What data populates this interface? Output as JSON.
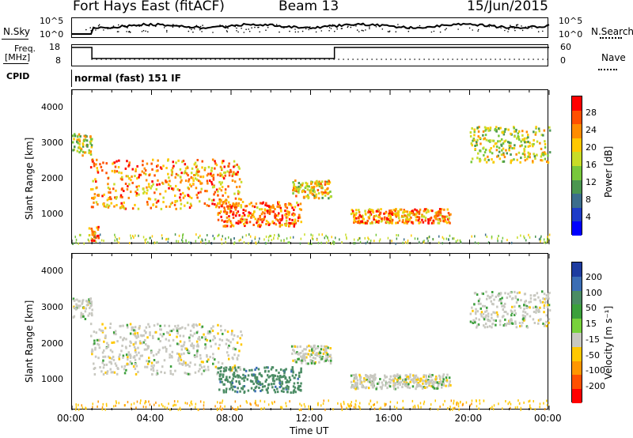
{
  "header": {
    "station": "Fort Hays East (fitACF)",
    "beam": "Beam 13",
    "date": "15/Jun/2015"
  },
  "top_panels": {
    "nsky_label": "N.Sky",
    "nsky_ticks": [
      "10^5",
      "10^0"
    ],
    "nsearch_label": "N.Search",
    "nsearch_ticks": [
      "10^5",
      "10^0"
    ],
    "freq_label_1": "Freq.",
    "freq_label_2": "[MHz]",
    "freq_ticks": [
      "18",
      "8"
    ],
    "nave_label": "Nave",
    "nave_ticks": [
      "60",
      "0"
    ],
    "cpid_label": "CPID",
    "cpid_text": "normal (fast) 151 IF"
  },
  "x_axis": {
    "label": "Time UT",
    "ticks": [
      "00:00",
      "04:00",
      "08:00",
      "12:00",
      "16:00",
      "20:00",
      "00:00"
    ]
  },
  "y_axis": {
    "label": "Slant Range [km]",
    "ticks": [
      "4000",
      "3000",
      "2000",
      "1000"
    ]
  },
  "power_colorbar": {
    "label": "Power [dB]",
    "ticks": [
      "28",
      "24",
      "20",
      "16",
      "12",
      "8",
      "4"
    ],
    "colors": [
      "#0000ff",
      "#1e3cc8",
      "#3c6e8c",
      "#4b9650",
      "#78c83c",
      "#c8dc28",
      "#ffc800",
      "#ff8c00",
      "#ff5000",
      "#ff0000"
    ]
  },
  "velocity_colorbar": {
    "label": "Velocity [m s⁻¹]",
    "ticks": [
      "200",
      "100",
      "50",
      "15",
      "-15",
      "-50",
      "-100",
      "-200"
    ],
    "colors": [
      "#1e3ca0",
      "#3c6eb4",
      "#4b8c64",
      "#3ca03c",
      "#78d23c",
      "#c8c8c0",
      "#ffc800",
      "#ff9600",
      "#ff5000",
      "#ff0000"
    ]
  },
  "chart_data": [
    {
      "type": "heatmap",
      "title": "Power [dB]",
      "xlabel": "Time UT",
      "ylabel": "Slant Range [km]",
      "xlim": [
        0,
        24
      ],
      "ylim": [
        180,
        4500
      ],
      "colorbar_range": [
        0,
        30
      ],
      "scatter_features": [
        {
          "t_start": 0,
          "t_end": 1.0,
          "r_low": 2700,
          "r_high": 3300,
          "power": 16
        },
        {
          "t_start": 0.9,
          "t_end": 8.5,
          "r_low": 1200,
          "r_high": 2600,
          "power": 22
        },
        {
          "t_start": 7.3,
          "t_end": 11.5,
          "r_low": 700,
          "r_high": 1400,
          "power": 24
        },
        {
          "t_start": 11.0,
          "t_end": 13.0,
          "r_low": 1500,
          "r_high": 2000,
          "power": 18
        },
        {
          "t_start": 14.0,
          "t_end": 19.0,
          "r_low": 800,
          "r_high": 1200,
          "power": 22
        },
        {
          "t_start": 20.0,
          "t_end": 24.0,
          "r_low": 2500,
          "r_high": 3500,
          "power": 16
        },
        {
          "t_start": 0.8,
          "t_end": 1.3,
          "r_low": 300,
          "r_high": 700,
          "power": 24
        }
      ]
    },
    {
      "type": "heatmap",
      "title": "Velocity [m s⁻¹]",
      "xlabel": "Time UT",
      "ylabel": "Slant Range [km]",
      "xlim": [
        0,
        24
      ],
      "ylim": [
        180,
        4500
      ],
      "colorbar_range": [
        -200,
        200
      ],
      "scatter_features": [
        {
          "t_start": 0,
          "t_end": 1.0,
          "r_low": 2700,
          "r_high": 3300,
          "velocity": 0
        },
        {
          "t_start": 0.9,
          "t_end": 8.5,
          "r_low": 1200,
          "r_high": 2600,
          "velocity": 0
        },
        {
          "t_start": 7.3,
          "t_end": 11.5,
          "r_low": 700,
          "r_high": 1400,
          "velocity": 60
        },
        {
          "t_start": 11.0,
          "t_end": 13.0,
          "r_low": 1500,
          "r_high": 2000,
          "velocity": 0
        },
        {
          "t_start": 14.0,
          "t_end": 19.0,
          "r_low": 800,
          "r_high": 1200,
          "velocity": 0
        },
        {
          "t_start": 20.0,
          "t_end": 24.0,
          "r_low": 2500,
          "r_high": 3500,
          "velocity": 0
        }
      ]
    }
  ]
}
